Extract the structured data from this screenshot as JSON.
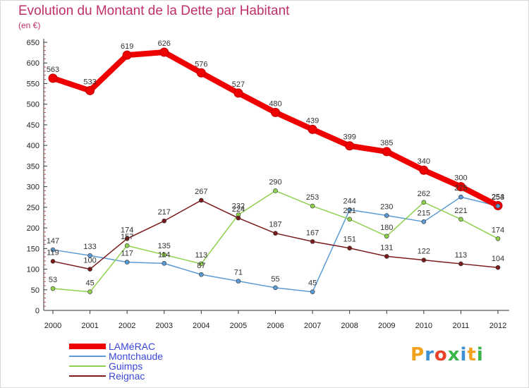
{
  "chart_data": {
    "type": "line",
    "title": "Evolution du Montant de la Dette par Habitant",
    "subtitle": "(en €)",
    "x": [
      "2000",
      "2001",
      "2002",
      "2003",
      "2004",
      "2005",
      "2006",
      "2007",
      "2008",
      "2009",
      "2010",
      "2011",
      "2012"
    ],
    "ylim": [
      0,
      650
    ],
    "yticks": [
      0,
      50,
      100,
      150,
      200,
      250,
      300,
      350,
      400,
      450,
      500,
      550,
      600,
      650
    ],
    "grid": false,
    "legend_position": "bottom-left",
    "series": [
      {
        "name": "LAMéRAC",
        "color": "#ee0000",
        "values": [
          563,
          533,
          619,
          626,
          576,
          527,
          480,
          439,
          399,
          385,
          340,
          300,
          254
        ]
      },
      {
        "name": "Montchaude",
        "color": "#5b9bd5",
        "values": [
          147,
          133,
          117,
          114,
          87,
          71,
          55,
          45,
          244,
          230,
          215,
          275,
          253
        ]
      },
      {
        "name": "Guimps",
        "color": "#8fd14f",
        "values": [
          53,
          45,
          157,
          135,
          113,
          232,
          290,
          253,
          221,
          180,
          262,
          221,
          174
        ]
      },
      {
        "name": "Reignac",
        "color": "#7a1a1a",
        "values": [
          119,
          100,
          174,
          217,
          267,
          224,
          187,
          167,
          151,
          131,
          122,
          113,
          104
        ]
      }
    ]
  },
  "logo": {
    "letters": [
      "P",
      "r",
      "o",
      "x",
      "i",
      "t",
      "i"
    ],
    "colors": [
      "#f2a21f",
      "#3d8fd6",
      "#e8432a",
      "#39b54a",
      "#3d8fd6",
      "#f2a21f",
      "#39b54a"
    ]
  }
}
